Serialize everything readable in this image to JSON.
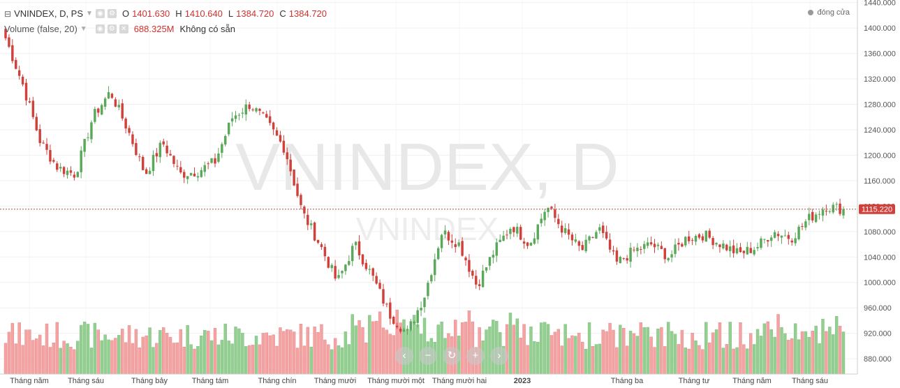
{
  "legend": {
    "symbol": "VNINDEX, D, PS",
    "o_label": "O",
    "o_value": "1401.630",
    "h_label": "H",
    "h_value": "1410.640",
    "l_label": "L",
    "l_value": "1384.720",
    "c_label": "C",
    "c_value": "1384.720",
    "volume_label": "Volume (false, 20)",
    "volume_value": "688.325M",
    "volume_extra": "Không có sẵn"
  },
  "market_status": "đóng cửa",
  "watermark": {
    "main": "VNINDEX, D",
    "sub": "VNINDEX"
  },
  "nav_icons": [
    "minus-icon",
    "zoom-out-icon",
    "reset-icon",
    "plus-icon",
    "next-icon"
  ],
  "chart_data": {
    "type": "candlestick",
    "price_axis": {
      "ticks": [
        "880.000",
        "920.000",
        "960.000",
        "1000.000",
        "1040.000",
        "1080.000",
        "1120.000",
        "1160.000",
        "1200.000",
        "1240.000",
        "1280.000",
        "1320.000",
        "1360.000",
        "1400.000",
        "1440.000"
      ],
      "min": 856,
      "max": 1444
    },
    "current_price": "1115.220",
    "x_labels": [
      "Tháng năm",
      "Tháng sáu",
      "Tháng bảy",
      "Tháng tám",
      "Tháng chín",
      "Tháng mười",
      "Tháng mười một",
      "Tháng mười hai",
      "2023",
      "Tháng ba",
      "Tháng tư",
      "Tháng năm",
      "Tháng sáu"
    ],
    "close_anchors": [
      1384,
      1310,
      1220,
      1180,
      1170,
      1260,
      1300,
      1240,
      1170,
      1220,
      1170,
      1175,
      1190,
      1260,
      1280,
      1250,
      1210,
      1110,
      1060,
      1000,
      1060,
      1010,
      950,
      920,
      980,
      1080,
      1060,
      995,
      1050,
      1090,
      1060,
      1120,
      1080,
      1050,
      1085,
      1030,
      1050,
      1060,
      1040,
      1070,
      1075,
      1060,
      1045,
      1055,
      1080,
      1070,
      1100,
      1120,
      1115.22
    ],
    "volume_colors": {
      "up": "#93cf91",
      "down": "#f4a2a2"
    }
  },
  "colors": {
    "up": "#5aa85a",
    "down": "#d0413b",
    "price_line": "#b8504b"
  }
}
